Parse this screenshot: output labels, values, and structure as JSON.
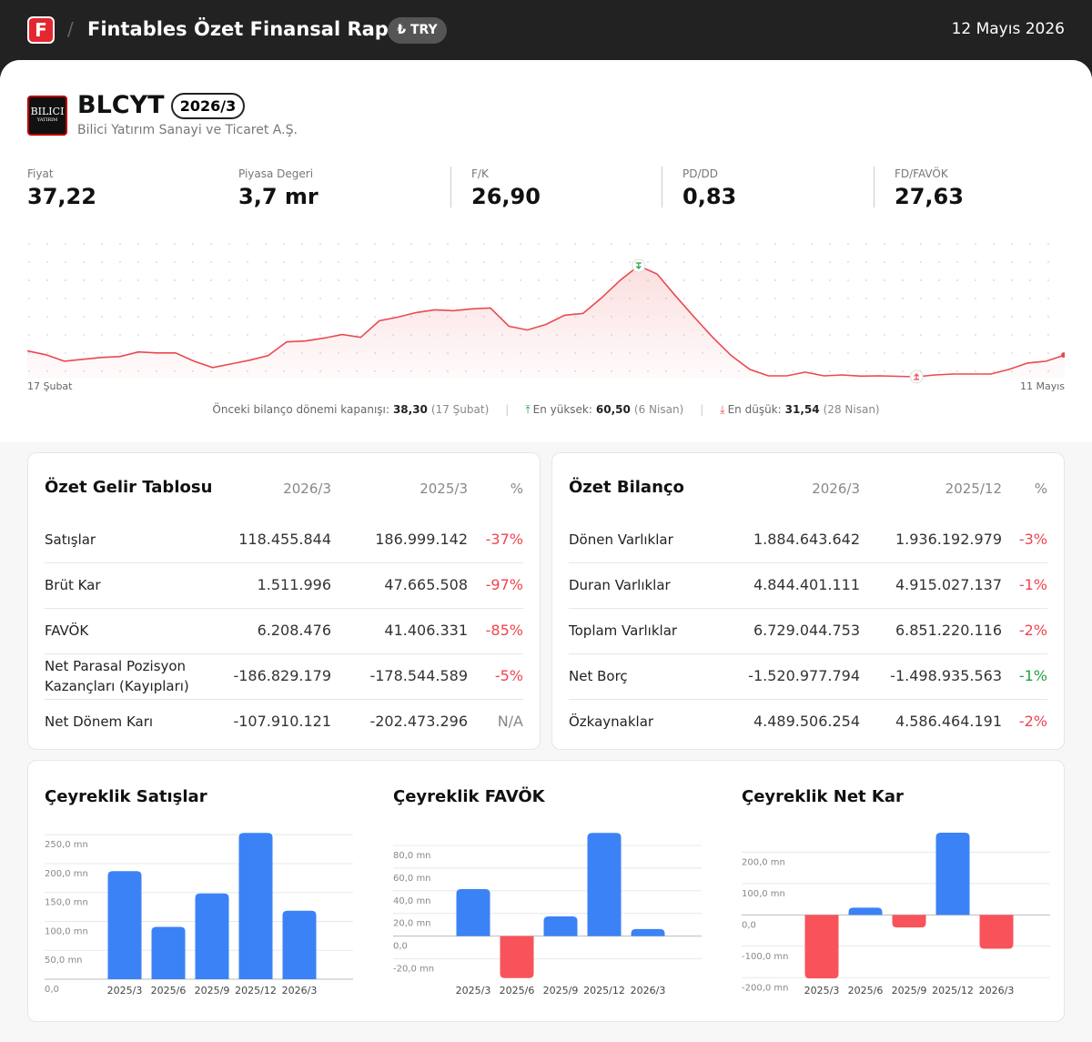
{
  "header": {
    "logo": "F",
    "title": "Fintables Özet Finansal Rapor",
    "currency": "₺ TRY",
    "date": "12 Mayıs 2026"
  },
  "company": {
    "logo": "BILICI",
    "logo_sub": "YATIRIM",
    "ticker": "BLCYT",
    "period": "2026/3",
    "name": "Bilici Yatırım Sanayi ve Ticaret A.Ş."
  },
  "metrics": [
    {
      "label": "Fiyat",
      "value": "37,22"
    },
    {
      "label": "Piyasa Degeri",
      "value": "3,7 mr"
    },
    {
      "label": "F/K",
      "value": "26,90"
    },
    {
      "label": "PD/DD",
      "value": "0,83"
    },
    {
      "label": "FD/FAVÖK",
      "value": "27,63"
    }
  ],
  "price_stats": [
    {
      "label": "Önceki bilanço dönemi kapanışı:",
      "value": "38,30",
      "date": "(17 Şubat)"
    },
    {
      "label": "En yüksek:",
      "value": "60,50",
      "date": "(6 Nisan)"
    },
    {
      "label": "En düşük:",
      "value": "31,54",
      "date": "(28 Nisan)"
    }
  ],
  "income": {
    "title": "Özet Gelir Tablosu",
    "columns": [
      "2026/3",
      "2025/3",
      "%"
    ],
    "rows": [
      [
        "Satışlar",
        "118.455.844",
        "186.999.142",
        "-37%"
      ],
      [
        "Brüt Kar",
        "1.511.996",
        "47.665.508",
        "-97%"
      ],
      [
        "FAVÖK",
        "6.208.476",
        "41.406.331",
        "-85%"
      ],
      [
        "Net Parasal Pozisyon Kazançları (Kayıpları)",
        "-186.829.179",
        "-178.544.589",
        "-5%"
      ],
      [
        "Net Dönem Karı",
        "-107.910.121",
        "-202.473.296",
        "N/A"
      ]
    ],
    "colors": [
      "#ef4450",
      "#ef4450",
      "#ef4450",
      "#ef4450",
      "#888888"
    ]
  },
  "balance": {
    "title": "Özet Bilanço",
    "columns": [
      "2026/3",
      "2025/12",
      "%"
    ],
    "rows": [
      [
        "Dönen Varlıklar",
        "1.884.643.642",
        "1.936.192.979",
        "-3%"
      ],
      [
        "Duran Varlıklar",
        "4.844.401.111",
        "4.915.027.137",
        "-1%"
      ],
      [
        "Toplam Varlıklar",
        "6.729.044.753",
        "6.851.220.116",
        "-2%"
      ],
      [
        "Net Borç",
        "-1.520.977.794",
        "-1.498.935.563",
        "-1%"
      ],
      [
        "Özkaynaklar",
        "4.489.506.254",
        "4.586.464.191",
        "-2%"
      ]
    ],
    "colors": [
      "#ef4450",
      "#ef4450",
      "#ef4450",
      "#22a045",
      "#ef4450"
    ]
  },
  "chart_data": [
    {
      "type": "line",
      "color": "#e84a4f",
      "categories": [
        "17 Şubat",
        null,
        null,
        null,
        null,
        null,
        null,
        null,
        null,
        null,
        null,
        null,
        null,
        null,
        null,
        null,
        null,
        null,
        null,
        null,
        null,
        null,
        null,
        null,
        null,
        null,
        null,
        null,
        null,
        null,
        null,
        null,
        null,
        null,
        null,
        null,
        null,
        null,
        null,
        null,
        null,
        null,
        null,
        null,
        null,
        null,
        null,
        null,
        null,
        null,
        null,
        null,
        null,
        null,
        null,
        null,
        "11 Mayıs"
      ],
      "values": [
        38.3,
        37.29,
        35.61,
        36.09,
        36.57,
        36.81,
        38.01,
        37.77,
        37.77,
        35.61,
        33.94,
        34.89,
        35.85,
        37.05,
        40.64,
        40.88,
        41.6,
        42.55,
        41.83,
        46.14,
        47.1,
        48.3,
        49.01,
        48.77,
        49.25,
        49.49,
        44.71,
        43.75,
        45.18,
        47.58,
        48.06,
        52.12,
        56.67,
        60.5,
        58.35,
        52.6,
        47.1,
        41.83,
        37.05,
        33.46,
        31.78,
        31.78,
        32.74,
        31.78,
        32.02,
        31.7,
        31.78,
        31.65,
        31.54,
        32.02,
        32.26,
        32.26,
        32.26,
        33.46,
        35.13,
        35.61,
        37.22
      ]
    },
    {
      "type": "bar",
      "title": "Çeyreklik Satışlar",
      "categories": [
        "2025/3",
        "2025/6",
        "2025/9",
        "2025/12",
        "2026/3"
      ],
      "values": [
        187.0,
        90.6,
        148.4,
        253.0,
        118.46
      ],
      "color": "#3b82f6",
      "negative_color": "#f8535a",
      "ylim": [
        0,
        255
      ],
      "yticks": [
        {
          "value": 250,
          "label": "250,0 mn"
        },
        {
          "value": 200,
          "label": "200,0 mn"
        },
        {
          "value": 150,
          "label": "150,0 mn"
        },
        {
          "value": 100,
          "label": "100,0 mn"
        },
        {
          "value": 50,
          "label": "50,0 mn"
        },
        {
          "value": 0,
          "label": "0,0"
        }
      ],
      "grid": true
    },
    {
      "type": "bar",
      "title": "Çeyreklik FAVÖK",
      "categories": [
        "2025/3",
        "2025/6",
        "2025/9",
        "2025/12",
        "2026/3"
      ],
      "values": [
        41.41,
        -37,
        17.4,
        91,
        6.21
      ],
      "color": "#3b82f6",
      "negative_color": "#f8535a",
      "ylim": [
        -38,
        92
      ],
      "yticks": [
        {
          "value": 80,
          "label": "80,0 mn"
        },
        {
          "value": 60,
          "label": "60,0 mn"
        },
        {
          "value": 40,
          "label": "40,0 mn"
        },
        {
          "value": 20,
          "label": "20,0 mn"
        },
        {
          "value": 0,
          "label": "0,0"
        },
        {
          "value": -20,
          "label": "-20,0 mn"
        }
      ],
      "grid": true
    },
    {
      "type": "bar",
      "title": "Çeyreklik Net Kar",
      "categories": [
        "2025/3",
        "2025/6",
        "2025/9",
        "2025/12",
        "2026/3"
      ],
      "values": [
        -202.47,
        23,
        -40,
        262,
        -107.91
      ],
      "color": "#3b82f6",
      "negative_color": "#f8535a",
      "ylim": [
        -205,
        265
      ],
      "yticks": [
        {
          "value": 200,
          "label": "200,0 mn"
        },
        {
          "value": 100,
          "label": "100,0 mn"
        },
        {
          "value": 0,
          "label": "0,0"
        },
        {
          "value": -100,
          "label": "-100,0 mn"
        },
        {
          "value": -200,
          "label": "-200,0 mn"
        }
      ],
      "grid": true
    }
  ]
}
